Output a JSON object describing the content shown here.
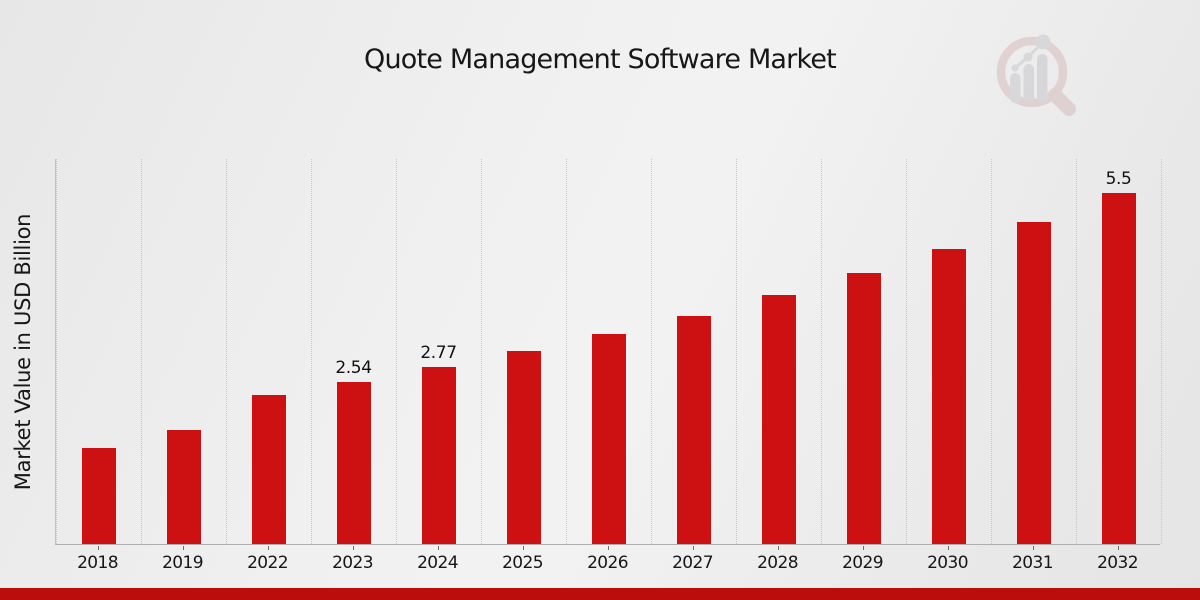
{
  "title": "Quote Management Software Market",
  "ylabel": "Market Value in USD Billion",
  "colors": {
    "bar": "#CD1112",
    "footer": "#BC0D0D",
    "grid": "#c6c6c6",
    "axis": "#aeaeae",
    "text": "#171717",
    "logo_ring_pink": "#d8bcbc",
    "logo_bars_gray": "#c7c7cd"
  },
  "logo_icon": "magnifier-bar-chart-logo",
  "footer": {
    "type": "brand-color-stripe"
  },
  "chart_data": {
    "type": "bar",
    "title": "Quote Management Software Market",
    "xlabel": "",
    "ylabel": "Market Value in USD Billion",
    "categories": [
      "2018",
      "2019",
      "2022",
      "2023",
      "2024",
      "2025",
      "2026",
      "2027",
      "2028",
      "2029",
      "2030",
      "2031",
      "2032"
    ],
    "values": [
      1.5,
      1.79,
      2.33,
      2.54,
      2.77,
      3.02,
      3.29,
      3.58,
      3.9,
      4.25,
      4.63,
      5.05,
      5.5
    ],
    "data_labels": {
      "2023": "2.54",
      "2024": "2.77",
      "2032": "5.5"
    },
    "ylim": [
      0,
      6.05
    ],
    "bar_color": "#CD1112",
    "grid": "vertical-dotted",
    "legend": "none",
    "y_axis_ticks_visible": false,
    "unit": "USD Billion"
  }
}
